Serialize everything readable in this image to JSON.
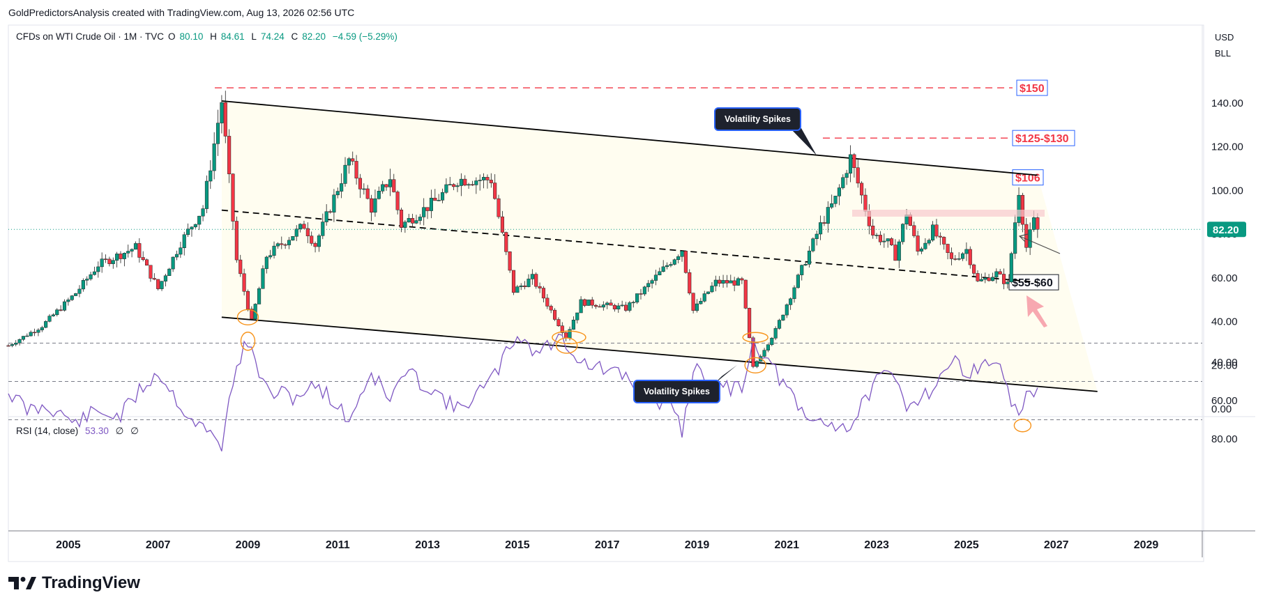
{
  "header": {
    "text": "GoldPredictorsAnalysis created with TradingView.com, Aug 13, 2026 02:56 UTC"
  },
  "legend": {
    "symbol": "CFDs on WTI Crude Oil · 1M · TVC",
    "open_label": "O",
    "open": "80.10",
    "high_label": "H",
    "high": "84.61",
    "low_label": "L",
    "low": "74.24",
    "close_label": "C",
    "close": "82.20",
    "change": "−4.59 (−5.29%)"
  },
  "rsi_legend": {
    "label": "RSI (14, close)",
    "value": "53.30",
    "extra1": "∅",
    "extra2": "∅"
  },
  "currency": {
    "unit1": "USD",
    "unit2": "BLL"
  },
  "brand": {
    "name": "TradingView"
  },
  "callouts": {
    "top": "Volatility Spikes",
    "bottom": "Volatility Spikes"
  },
  "levels": {
    "l150": "$150",
    "l125": "$125-$130",
    "l106": "$106",
    "l55": "$55-$60",
    "last": "82.20"
  },
  "colors": {
    "up": "#089981",
    "down": "#f23645",
    "rsi_line": "#7e57c2",
    "rsi_band": "#ede7f6",
    "accent": "#2962ff",
    "level_red": "#f23645",
    "circle": "#f7931a"
  },
  "chart_data": [
    {
      "type": "candlestick",
      "title": "CFDs on WTI Crude Oil · 1M · TVC",
      "yaxis_ticks": [
        0,
        20,
        40,
        60,
        80,
        100,
        120,
        140
      ],
      "ylim": [
        0,
        150
      ],
      "xaxis_ticks": [
        "2005",
        "2007",
        "2009",
        "2011",
        "2013",
        "2015",
        "2017",
        "2019",
        "2021",
        "2023",
        "2025",
        "2027",
        "2029"
      ],
      "xlim": [
        "2003-09",
        "2030-04"
      ],
      "last_price": 82.2,
      "horizontal_levels": [
        {
          "label": "$150",
          "value": 147
        },
        {
          "label": "$125-$130",
          "value": 124
        },
        {
          "label": "$106",
          "value": 106
        },
        {
          "label": "$55-$60",
          "value": 58
        }
      ],
      "trendlines": [
        {
          "name": "upper channel",
          "from": [
            "2008-06",
            141
          ],
          "to": [
            "2026-08",
            107
          ]
        },
        {
          "name": "lower channel",
          "from": [
            "2008-06",
            42
          ],
          "to": [
            "2027-12",
            8
          ]
        },
        {
          "name": "midline",
          "from": [
            "2008-06",
            91
          ],
          "to": [
            "2026-08",
            58
          ]
        }
      ],
      "anchors": [
        [
          "2003-09",
          29
        ],
        [
          "2004-06",
          38
        ],
        [
          "2005-03",
          53
        ],
        [
          "2005-09",
          66
        ],
        [
          "2006-07",
          74
        ],
        [
          "2007-01",
          55
        ],
        [
          "2007-07",
          76
        ],
        [
          "2008-01",
          92
        ],
        [
          "2008-06",
          141
        ],
        [
          "2008-10",
          68
        ],
        [
          "2009-02",
          40
        ],
        [
          "2009-06",
          70
        ],
        [
          "2010-04",
          84
        ],
        [
          "2010-07",
          75
        ],
        [
          "2011-04",
          114
        ],
        [
          "2011-10",
          92
        ],
        [
          "2012-03",
          106
        ],
        [
          "2012-06",
          84
        ],
        [
          "2013-03",
          95
        ],
        [
          "2013-09",
          105
        ],
        [
          "2014-06",
          105
        ],
        [
          "2014-12",
          54
        ],
        [
          "2015-05",
          60
        ],
        [
          "2016-02",
          33
        ],
        [
          "2016-06",
          49
        ],
        [
          "2017-06",
          46
        ],
        [
          "2018-09",
          73
        ],
        [
          "2018-12",
          45
        ],
        [
          "2019-06",
          58
        ],
        [
          "2020-01",
          58
        ],
        [
          "2020-04",
          19
        ],
        [
          "2020-10",
          36
        ],
        [
          "2021-10",
          84
        ],
        [
          "2022-02",
          96
        ],
        [
          "2022-06",
          115
        ],
        [
          "2022-12",
          80
        ],
        [
          "2023-04",
          76
        ],
        [
          "2023-06",
          70
        ],
        [
          "2023-09",
          90
        ],
        [
          "2023-12",
          72
        ],
        [
          "2024-04",
          82
        ],
        [
          "2024-09",
          68
        ],
        [
          "2025-01",
          73
        ],
        [
          "2025-04",
          58
        ],
        [
          "2025-09",
          62
        ],
        [
          "2025-12",
          57
        ],
        [
          "2026-03",
          100
        ],
        [
          "2026-05",
          74
        ],
        [
          "2026-07",
          86
        ],
        [
          "2026-08",
          82.2
        ]
      ]
    },
    {
      "type": "line",
      "title": "RSI (14, close)",
      "yaxis_ticks": [
        40,
        60,
        80
      ],
      "ylim": [
        20,
        85
      ],
      "bands": [
        30,
        50,
        70
      ],
      "last_value": 53.3,
      "anchors": [
        [
          "2003-09",
          55
        ],
        [
          "2004-02",
          65
        ],
        [
          "2004-08",
          63
        ],
        [
          "2005-03",
          72
        ],
        [
          "2005-08",
          66
        ],
        [
          "2006-03",
          68
        ],
        [
          "2006-08",
          55
        ],
        [
          "2007-01",
          45
        ],
        [
          "2007-09",
          68
        ],
        [
          "2008-06",
          83
        ],
        [
          "2008-10",
          40
        ],
        [
          "2009-01",
          30
        ],
        [
          "2009-06",
          55
        ],
        [
          "2010-01",
          58
        ],
        [
          "2010-08",
          52
        ],
        [
          "2011-04",
          70
        ],
        [
          "2011-10",
          45
        ],
        [
          "2012-03",
          60
        ],
        [
          "2012-07",
          45
        ],
        [
          "2013-03",
          55
        ],
        [
          "2013-09",
          65
        ],
        [
          "2014-06",
          50
        ],
        [
          "2015-01",
          25
        ],
        [
          "2015-06",
          35
        ],
        [
          "2016-01",
          27
        ],
        [
          "2016-06",
          40
        ],
        [
          "2017-06",
          48
        ],
        [
          "2018-06",
          65
        ],
        [
          "2018-09",
          75
        ],
        [
          "2019-01",
          40
        ],
        [
          "2019-06",
          55
        ],
        [
          "2020-01",
          52
        ],
        [
          "2020-04",
          29
        ],
        [
          "2020-10",
          45
        ],
        [
          "2021-06",
          70
        ],
        [
          "2022-02",
          72
        ],
        [
          "2022-06",
          74
        ],
        [
          "2022-12",
          52
        ],
        [
          "2023-05",
          46
        ],
        [
          "2023-09",
          62
        ],
        [
          "2024-03",
          55
        ],
        [
          "2024-09",
          40
        ],
        [
          "2025-03",
          45
        ],
        [
          "2025-09",
          38
        ],
        [
          "2026-03",
          72
        ],
        [
          "2026-05",
          52
        ],
        [
          "2026-07",
          58
        ],
        [
          "2026-08",
          53.3
        ]
      ]
    }
  ]
}
